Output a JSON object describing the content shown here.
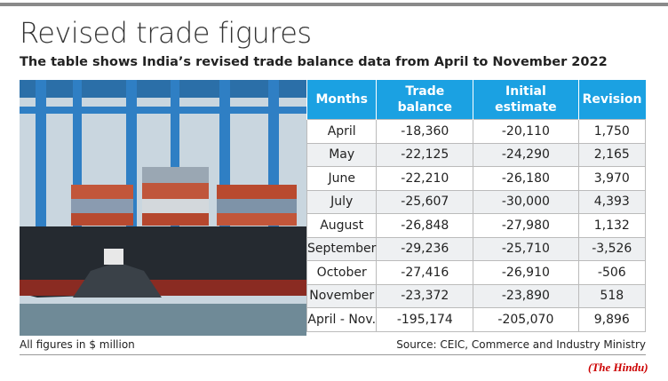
{
  "header": {
    "title": "Revised trade figures",
    "subtitle": "The table shows India’s revised trade balance data from April to November 2022"
  },
  "table": {
    "columns": [
      "Months",
      "Trade balance",
      "Initial estimate",
      "Revision"
    ],
    "rows": [
      [
        "April",
        "-18,360",
        "-20,110",
        "1,750"
      ],
      [
        "May",
        "-22,125",
        "-24,290",
        "2,165"
      ],
      [
        "June",
        "-22,210",
        "-26,180",
        "3,970"
      ],
      [
        "July",
        "-25,607",
        "-30,000",
        "4,393"
      ],
      [
        "August",
        "-26,848",
        "-27,980",
        "1,132"
      ],
      [
        "September",
        "-29,236",
        "-25,710",
        "-3,526"
      ],
      [
        "October",
        "-27,416",
        "-26,910",
        "-506"
      ],
      [
        "November",
        "-23,372",
        "-23,890",
        "518"
      ],
      [
        "April - Nov.",
        "-195,174",
        "-205,070",
        "9,896"
      ]
    ]
  },
  "footer": {
    "note": "All figures in $ million",
    "source": "Source: CEIC, Commerce and Industry Ministry"
  },
  "credit": "(The Hindu)"
}
